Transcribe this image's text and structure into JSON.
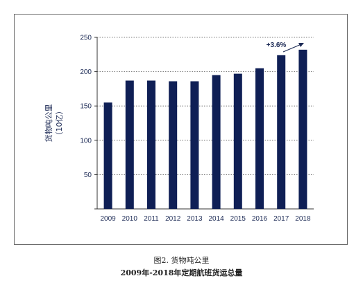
{
  "chart_data": {
    "type": "bar",
    "categories": [
      "2009",
      "2010",
      "2011",
      "2012",
      "2013",
      "2014",
      "2015",
      "2016",
      "2017",
      "2018"
    ],
    "values": [
      155,
      187,
      187,
      186,
      186,
      195,
      197,
      205,
      224,
      232
    ],
    "ylabel_line1": "货物吨公里",
    "ylabel_line2": "（10亿）",
    "ylim": [
      0,
      250
    ],
    "yticks": [
      50,
      100,
      150,
      200,
      250
    ],
    "grid": true,
    "annotation": "+3.6%",
    "bar_color": "#0f1f55"
  },
  "caption": {
    "line1": "图2.  货物吨公里",
    "line2": "2009年-2018年定期航班货运总量"
  }
}
